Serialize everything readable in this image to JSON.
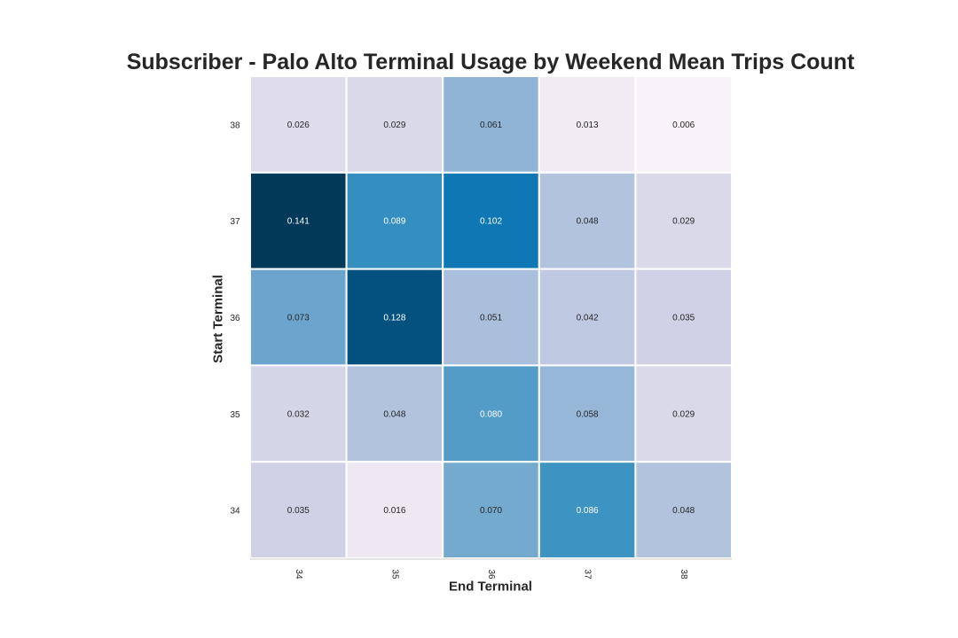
{
  "chart_data": {
    "type": "heatmap",
    "title": "Subscriber - Palo Alto Terminal Usage by Weekend Mean Trips Count",
    "xlabel": "End Terminal",
    "ylabel": "Start Terminal",
    "x_categories": [
      "34",
      "35",
      "36",
      "37",
      "38"
    ],
    "y_categories": [
      "38",
      "37",
      "36",
      "35",
      "34"
    ],
    "values": [
      [
        0.026,
        0.029,
        0.061,
        0.013,
        0.006
      ],
      [
        0.141,
        0.089,
        0.102,
        0.048,
        0.029
      ],
      [
        0.073,
        0.128,
        0.051,
        0.042,
        0.035
      ],
      [
        0.032,
        0.048,
        0.08,
        0.058,
        0.029
      ],
      [
        0.035,
        0.016,
        0.07,
        0.086,
        0.048
      ]
    ],
    "value_format": "0.000",
    "colormap": "PuBu",
    "value_range": [
      0,
      0.141
    ],
    "colors": {
      "low": "#fff7fb",
      "high": "#023858",
      "cell_border": "#ffffff",
      "light_text": "#ffffff",
      "dark_text": "#262626",
      "tick_text": "#262626",
      "title_text": "#262626"
    }
  }
}
